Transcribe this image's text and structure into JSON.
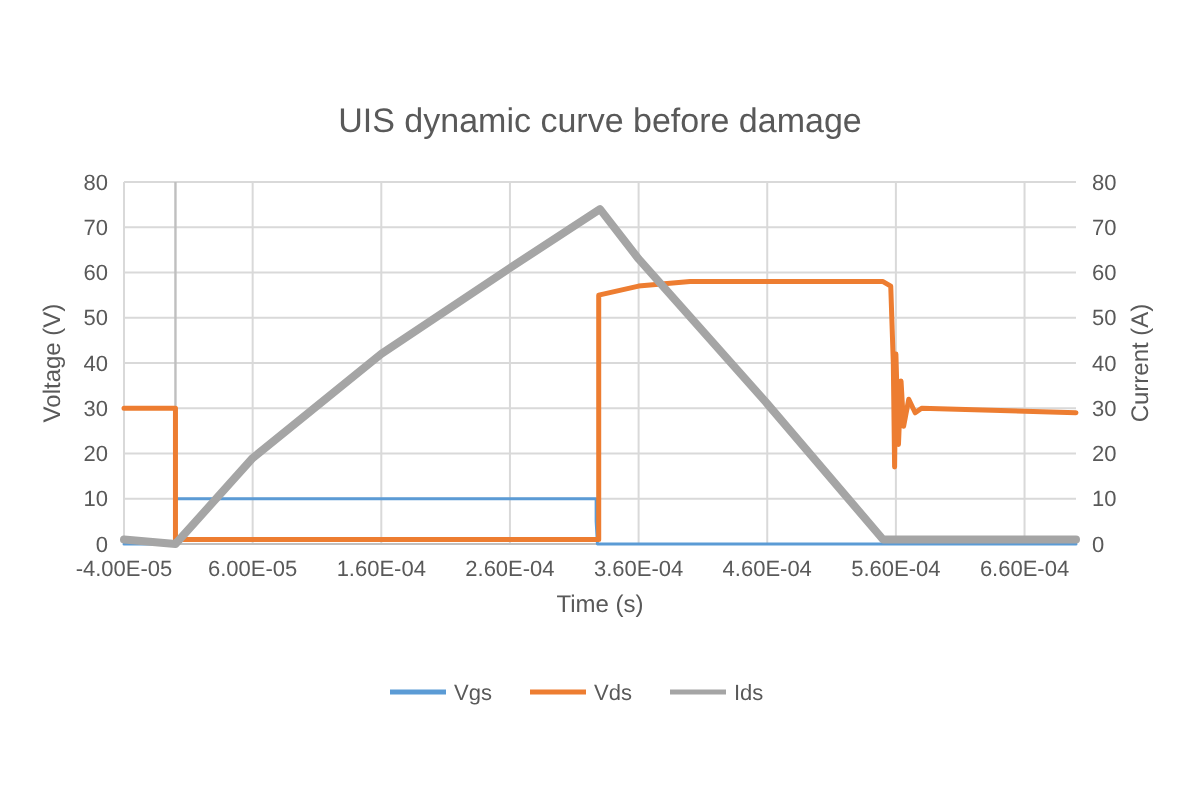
{
  "chart_data": {
    "type": "line",
    "title": "UIS dynamic curve before damage",
    "xlabel": "Time (s)",
    "ylabel": "Voltage (V)",
    "y2label": "Current (A)",
    "xlim": [
      -4e-05,
      0.0007
    ],
    "xticks": [
      {
        "value": -4e-05,
        "label": "-4.00E-05"
      },
      {
        "value": 6e-05,
        "label": "6.00E-05"
      },
      {
        "value": 0.00016,
        "label": "1.60E-04"
      },
      {
        "value": 0.00026,
        "label": "2.60E-04"
      },
      {
        "value": 0.00036,
        "label": "3.60E-04"
      },
      {
        "value": 0.00046,
        "label": "4.60E-04"
      },
      {
        "value": 0.00056,
        "label": "5.60E-04"
      },
      {
        "value": 0.00066,
        "label": "6.60E-04"
      }
    ],
    "ylim": [
      0,
      80
    ],
    "yticks": [
      0,
      10,
      20,
      30,
      40,
      50,
      60,
      70,
      80
    ],
    "y2lim": [
      0,
      80
    ],
    "y2ticks": [
      0,
      10,
      20,
      30,
      40,
      50,
      60,
      70,
      80
    ],
    "grid": true,
    "legend": "bottom",
    "line_style": "solid",
    "ref_lines": [
      {
        "axis": "x",
        "value": 0,
        "color": "#bfbfbf"
      }
    ],
    "series": [
      {
        "name": "Vgs",
        "color": "#5b9bd5",
        "x": [
          -4e-05,
          0,
          0,
          0.000327,
          0.000327,
          0.000328,
          0.0007
        ],
        "values": [
          0,
          0,
          10,
          10,
          5,
          0,
          0
        ]
      },
      {
        "name": "Vds",
        "color": "#ed7d31",
        "x": [
          -4e-05,
          0,
          0,
          0.000329,
          0.000329,
          0.00036,
          0.0004,
          0.00055,
          0.000556,
          0.000558,
          0.000559,
          0.00056,
          0.000562,
          0.000564,
          0.000566,
          0.00057,
          0.000575,
          0.00058,
          0.0007
        ],
        "values": [
          30,
          30,
          1,
          1,
          55,
          57,
          58,
          58,
          57,
          40,
          17,
          42,
          22,
          36,
          26,
          32,
          29,
          30,
          29
        ]
      },
      {
        "name": "Ids",
        "color": "#a5a5a5",
        "x": [
          -4e-05,
          0,
          6e-05,
          0.00016,
          0.00026,
          0.00033,
          0.00036,
          0.00046,
          0.00055,
          0.0007
        ],
        "values": [
          1,
          0,
          19,
          42,
          61,
          74,
          63,
          31,
          1,
          1
        ]
      }
    ]
  }
}
